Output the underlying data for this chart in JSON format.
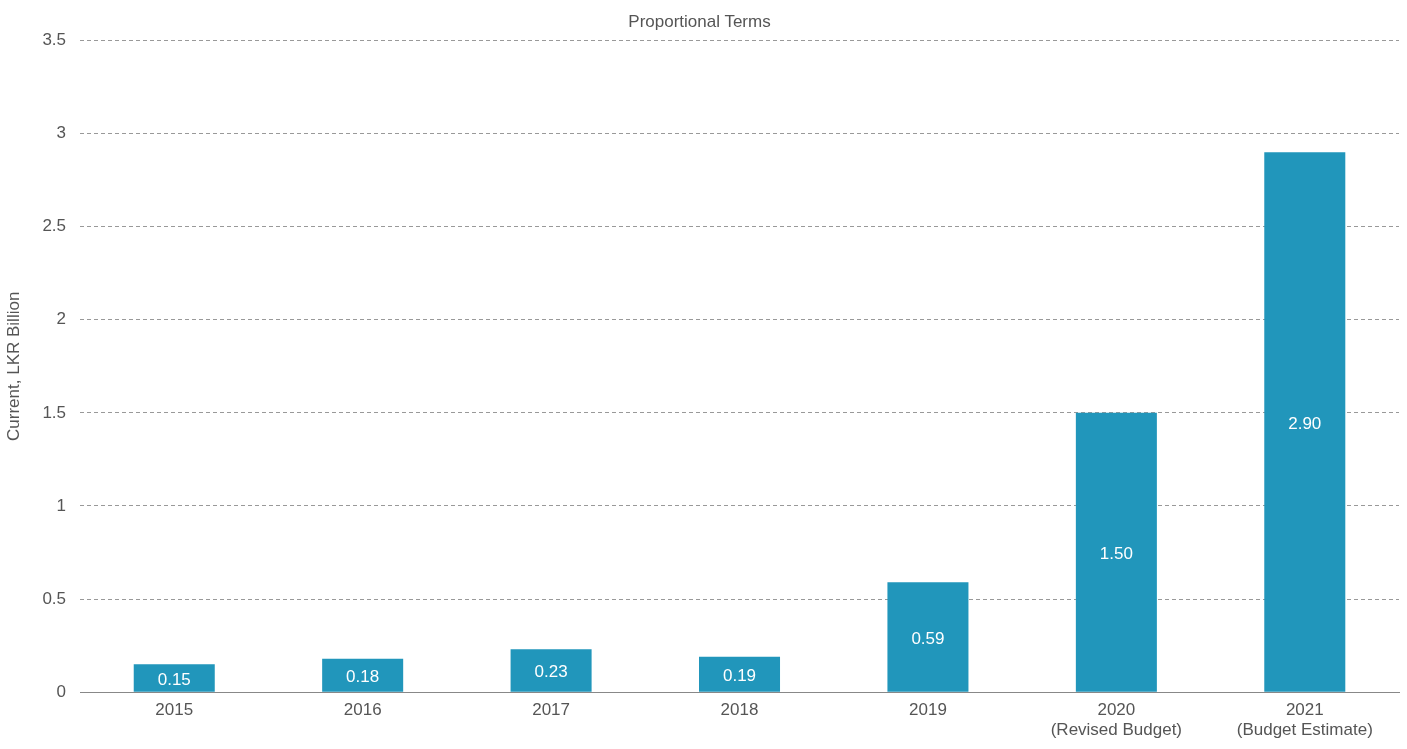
{
  "chart_data": {
    "type": "bar",
    "title": "Proportional Terms",
    "ylabel": "Current, LKR Billion",
    "categories": [
      "2015",
      "2016",
      "2017",
      "2018",
      "2019",
      "2020\n(Revised Budget)",
      "2021\n(Budget Estimate)"
    ],
    "values": [
      0.15,
      0.18,
      0.23,
      0.19,
      0.59,
      1.5,
      2.9
    ],
    "value_labels": [
      "0.15",
      "0.18",
      "0.23",
      "0.19",
      "0.59",
      "1.50",
      "2.90"
    ],
    "color": "#2196bb",
    "ylim": [
      0,
      3.5
    ],
    "yticks": [
      0,
      0.5,
      1,
      1.5,
      2,
      2.5,
      3,
      3.5
    ],
    "grid": "y",
    "legend": false
  }
}
